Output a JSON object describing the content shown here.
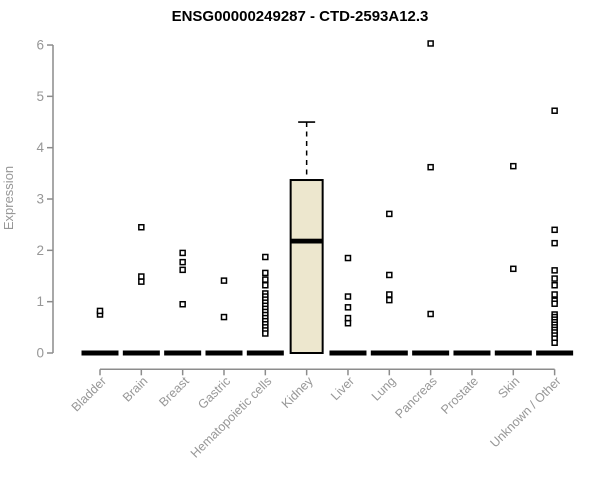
{
  "chart_data": {
    "type": "boxplot",
    "title": "ENSG00000249287 - CTD-2593A12.3",
    "ylabel": "Expression",
    "xlabel": "",
    "ylim": [
      0,
      6
    ],
    "yticks": [
      0,
      1,
      2,
      3,
      4,
      5,
      6
    ],
    "grid": false,
    "legend": null,
    "categories": [
      "Bladder",
      "Brain",
      "Breast",
      "Gastric",
      "Hematopoietic cells",
      "Kidney",
      "Liver",
      "Lung",
      "Pancreas",
      "Prostate",
      "Skin",
      "Unknown / Other"
    ],
    "boxes": [
      {
        "category": "Bladder",
        "median": 0,
        "q1": 0,
        "q3": 0,
        "whisker_low": 0,
        "whisker_high": 0,
        "outliers": [
          0.75,
          0.82
        ]
      },
      {
        "category": "Brain",
        "median": 0,
        "q1": 0,
        "q3": 0,
        "whisker_low": 0,
        "whisker_high": 0,
        "outliers": [
          2.45,
          1.49,
          1.39
        ]
      },
      {
        "category": "Breast",
        "median": 0,
        "q1": 0,
        "q3": 0,
        "whisker_low": 0,
        "whisker_high": 0,
        "outliers": [
          1.95,
          1.77,
          1.62,
          0.95
        ]
      },
      {
        "category": "Gastric",
        "median": 0,
        "q1": 0,
        "q3": 0,
        "whisker_low": 0,
        "whisker_high": 0,
        "outliers": [
          1.41,
          0.7
        ]
      },
      {
        "category": "Hematopoietic cells",
        "median": 0,
        "q1": 0,
        "q3": 0,
        "whisker_low": 0,
        "whisker_high": 0,
        "outliers": [
          1.87,
          1.56,
          1.43,
          1.32,
          1.16,
          1.1,
          1.04,
          0.98,
          0.92,
          0.86,
          0.8,
          0.74,
          0.68,
          0.62,
          0.56,
          0.5,
          0.44,
          0.38
        ]
      },
      {
        "category": "Kidney",
        "median": 2.18,
        "q1": 0,
        "q3": 3.37,
        "whisker_low": 0,
        "whisker_high": 4.5,
        "outliers": []
      },
      {
        "category": "Liver",
        "median": 0,
        "q1": 0,
        "q3": 0,
        "whisker_low": 0,
        "whisker_high": 0,
        "outliers": [
          1.85,
          1.1,
          0.89,
          0.68,
          0.58
        ]
      },
      {
        "category": "Lung",
        "median": 0,
        "q1": 0,
        "q3": 0,
        "whisker_low": 0,
        "whisker_high": 0,
        "outliers": [
          2.71,
          1.52,
          1.14,
          1.03
        ]
      },
      {
        "category": "Pancreas",
        "median": 0,
        "q1": 0,
        "q3": 0,
        "whisker_low": 0,
        "whisker_high": 0,
        "outliers": [
          6.03,
          3.62,
          0.76
        ]
      },
      {
        "category": "Prostate",
        "median": 0,
        "q1": 0,
        "q3": 0,
        "whisker_low": 0,
        "whisker_high": 0,
        "outliers": []
      },
      {
        "category": "Skin",
        "median": 0,
        "q1": 0,
        "q3": 0,
        "whisker_low": 0,
        "whisker_high": 0,
        "outliers": [
          3.64,
          1.64
        ]
      },
      {
        "category": "Unknown / Other",
        "median": 0,
        "q1": 0,
        "q3": 0,
        "whisker_low": 0,
        "whisker_high": 0,
        "outliers": [
          4.72,
          2.4,
          2.14,
          1.61,
          1.45,
          1.32,
          1.14,
          1.02,
          0.96,
          0.75,
          0.7,
          0.65,
          0.6,
          0.55,
          0.5,
          0.45,
          0.4,
          0.34,
          0.28,
          0.2
        ]
      }
    ],
    "colors": {
      "box_fill": "#EDE7CE",
      "box_stroke": "#000000",
      "median": "#000000",
      "point": "#000000",
      "bar": "#000000",
      "axis": "#8C8C8C",
      "tick_label": "#979797",
      "title": "#000000"
    }
  }
}
